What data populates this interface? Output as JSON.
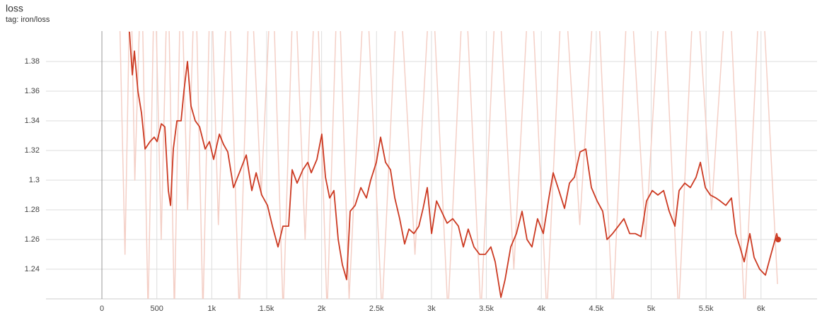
{
  "chart_data": {
    "type": "line",
    "title": "loss",
    "subtitle": "tag: iron/loss",
    "xlim": [
      -509,
      6510
    ],
    "ylim": [
      1.22,
      1.4005
    ],
    "xticks": [
      0,
      500,
      {
        "value": 1000,
        "label": "1k"
      },
      {
        "value": 1500,
        "label": "1.5k"
      },
      {
        "value": 2000,
        "label": "2k"
      },
      {
        "value": 2500,
        "label": "2.5k"
      },
      {
        "value": 3000,
        "label": "3k"
      },
      {
        "value": 3500,
        "label": "3.5k"
      },
      {
        "value": 4000,
        "label": "4k"
      },
      {
        "value": 4500,
        "label": "4.5k"
      },
      {
        "value": 5000,
        "label": "5k"
      },
      {
        "value": 5500,
        "label": "5.5k"
      },
      {
        "value": 6000,
        "label": "6k"
      }
    ],
    "yticks": [
      1.24,
      1.26,
      1.28,
      1.3,
      1.32,
      1.34,
      1.36,
      1.38
    ],
    "grid": true,
    "series": [
      {
        "color": "#f4cfc6",
        "x": [
          150,
          210,
          260,
          300,
          360,
          420,
          480,
          540,
          600,
          660,
          720,
          780,
          850,
          920,
          990,
          1060,
          1150,
          1250,
          1350,
          1450,
          1550,
          1650,
          1750,
          1850,
          1950,
          2050,
          2150,
          2250,
          2400,
          2550,
          2700,
          2850,
          3000,
          3150,
          3300,
          3450,
          3600,
          3750,
          3900,
          4050,
          4200,
          4350,
          4500,
          4650,
          4800,
          4950,
          5100,
          5250,
          5400,
          5550,
          5700,
          5850,
          6000,
          6150
        ],
        "values": [
          1.45,
          1.25,
          1.45,
          1.3,
          1.45,
          1.21,
          1.45,
          1.26,
          1.45,
          1.21,
          1.45,
          1.28,
          1.45,
          1.21,
          1.45,
          1.27,
          1.45,
          1.21,
          1.45,
          1.29,
          1.45,
          1.21,
          1.45,
          1.26,
          1.45,
          1.21,
          1.45,
          1.22,
          1.45,
          1.21,
          1.45,
          1.25,
          1.45,
          1.21,
          1.45,
          1.21,
          1.45,
          1.24,
          1.45,
          1.21,
          1.45,
          1.27,
          1.45,
          1.21,
          1.45,
          1.26,
          1.45,
          1.21,
          1.45,
          1.28,
          1.45,
          1.21,
          1.45,
          1.23
        ]
      },
      {
        "color": "#cc3a22",
        "x": [
          251,
          277,
          296,
          328,
          361,
          393,
          438,
          476,
          502,
          541,
          573,
          605,
          625,
          650,
          683,
          721,
          747,
          779,
          811,
          850,
          889,
          940,
          979,
          1017,
          1069,
          1108,
          1146,
          1198,
          1262,
          1314,
          1365,
          1404,
          1455,
          1507,
          1552,
          1603,
          1648,
          1700,
          1732,
          1777,
          1829,
          1874,
          1906,
          1957,
          2002,
          2035,
          2073,
          2112,
          2151,
          2189,
          2228,
          2260,
          2305,
          2357,
          2408,
          2447,
          2498,
          2537,
          2582,
          2627,
          2666,
          2711,
          2756,
          2795,
          2840,
          2885,
          2924,
          2962,
          3001,
          3046,
          3091,
          3142,
          3194,
          3245,
          3290,
          3335,
          3387,
          3438,
          3490,
          3541,
          3580,
          3632,
          3670,
          3722,
          3773,
          3825,
          3870,
          3915,
          3966,
          4018,
          4069,
          4108,
          4160,
          4211,
          4256,
          4301,
          4353,
          4405,
          4456,
          4508,
          4559,
          4598,
          4649,
          4701,
          4752,
          4804,
          4855,
          4907,
          4958,
          5010,
          5061,
          5113,
          5164,
          5216,
          5254,
          5306,
          5357,
          5409,
          5448,
          5493,
          5538,
          5589,
          5628,
          5679,
          5731,
          5770,
          5808,
          5847,
          5898,
          5937,
          5988,
          6040,
          6091,
          6143,
          6156
        ],
        "values": [
          1.4,
          1.371,
          1.387,
          1.36,
          1.345,
          1.321,
          1.326,
          1.329,
          1.326,
          1.338,
          1.336,
          1.293,
          1.283,
          1.321,
          1.34,
          1.34,
          1.36,
          1.38,
          1.35,
          1.34,
          1.336,
          1.321,
          1.326,
          1.314,
          1.331,
          1.324,
          1.319,
          1.295,
          1.307,
          1.317,
          1.293,
          1.305,
          1.29,
          1.283,
          1.269,
          1.255,
          1.269,
          1.269,
          1.307,
          1.298,
          1.307,
          1.312,
          1.305,
          1.314,
          1.331,
          1.302,
          1.288,
          1.293,
          1.26,
          1.243,
          1.233,
          1.279,
          1.283,
          1.295,
          1.288,
          1.3,
          1.312,
          1.329,
          1.312,
          1.307,
          1.288,
          1.274,
          1.257,
          1.267,
          1.264,
          1.269,
          1.281,
          1.295,
          1.264,
          1.286,
          1.279,
          1.271,
          1.274,
          1.269,
          1.255,
          1.267,
          1.255,
          1.25,
          1.25,
          1.255,
          1.245,
          1.221,
          1.233,
          1.255,
          1.264,
          1.279,
          1.26,
          1.255,
          1.274,
          1.264,
          1.288,
          1.305,
          1.293,
          1.281,
          1.298,
          1.302,
          1.319,
          1.321,
          1.295,
          1.286,
          1.279,
          1.26,
          1.264,
          1.269,
          1.274,
          1.264,
          1.264,
          1.262,
          1.286,
          1.293,
          1.29,
          1.293,
          1.279,
          1.269,
          1.293,
          1.298,
          1.295,
          1.302,
          1.312,
          1.295,
          1.29,
          1.288,
          1.286,
          1.283,
          1.288,
          1.264,
          1.255,
          1.245,
          1.264,
          1.248,
          1.24,
          1.236,
          1.25,
          1.264,
          1.26
        ]
      }
    ]
  }
}
